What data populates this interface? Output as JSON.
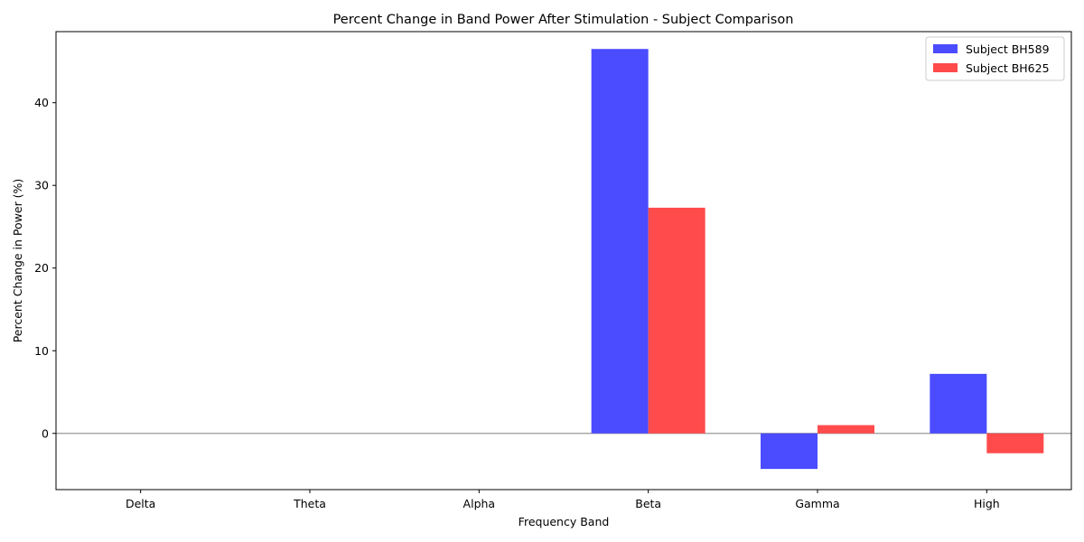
{
  "chart_data": {
    "type": "bar",
    "title": "Percent Change in Band Power After Stimulation - Subject Comparison",
    "xlabel": "Frequency Band",
    "ylabel": "Percent Change in Power (%)",
    "categories": [
      "Delta",
      "Theta",
      "Alpha",
      "Beta",
      "Gamma",
      "High"
    ],
    "series": [
      {
        "name": "Subject BH589",
        "color": "#4b4bff",
        "values": [
          0,
          0,
          0,
          46.5,
          -4.3,
          7.2
        ]
      },
      {
        "name": "Subject BH625",
        "color": "#ff4b4b",
        "values": [
          0,
          0,
          0,
          27.3,
          1.0,
          -2.4
        ]
      }
    ],
    "ylim": [
      -6.8,
      48.6
    ],
    "yticks": [
      0,
      10,
      20,
      30,
      40
    ],
    "grid": false,
    "zero_line": true,
    "legend": "top-right"
  }
}
